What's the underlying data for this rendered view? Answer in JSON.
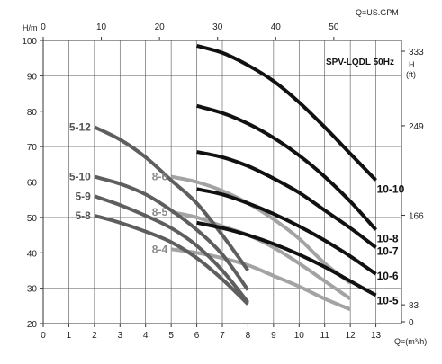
{
  "chart_data": {
    "type": "line",
    "title": "SPV-LQDL  50Hz",
    "xlabel": "Q=(m³/h)",
    "ylabel": "H/m",
    "top_xlabel": "Q=US.GPM",
    "right_ylabel": [
      "H",
      "(ft)"
    ],
    "xlim": [
      0,
      14
    ],
    "ylim": [
      20,
      100
    ],
    "top_xlim_gpm": [
      0,
      61.64
    ],
    "x_ticks": [
      0,
      1,
      2,
      3,
      4,
      5,
      6,
      7,
      8,
      9,
      10,
      11,
      12,
      13
    ],
    "y_ticks": [
      20,
      30,
      40,
      50,
      60,
      70,
      80,
      90,
      100
    ],
    "top_x_ticks": [
      0,
      10,
      20,
      30,
      40,
      50
    ],
    "right_y_ticks": [
      0,
      83,
      166,
      249,
      333
    ],
    "grid": true,
    "series": [
      {
        "name": "5-12",
        "color": "#5e5e5e",
        "label_side": "left",
        "x": [
          2,
          3,
          4,
          5,
          6,
          7,
          8
        ],
        "y": [
          75.5,
          72,
          67,
          60.5,
          54,
          45,
          35
        ]
      },
      {
        "name": "5-10",
        "color": "#5e5e5e",
        "label_side": "left",
        "x": [
          2,
          3,
          4,
          5,
          6,
          7,
          8
        ],
        "y": [
          61.5,
          59.5,
          56.5,
          52,
          46.5,
          39.5,
          29.5
        ]
      },
      {
        "name": "5-9",
        "color": "#5e5e5e",
        "label_side": "left",
        "x": [
          2,
          3,
          4,
          5,
          6,
          7,
          8
        ],
        "y": [
          56,
          53.5,
          50.5,
          47,
          42,
          35,
          26
        ]
      },
      {
        "name": "5-8",
        "color": "#5e5e5e",
        "label_side": "left",
        "x": [
          2,
          3,
          4,
          5,
          6,
          7,
          8
        ],
        "y": [
          50.5,
          48.5,
          46,
          43,
          38.5,
          32.5,
          25.5
        ]
      },
      {
        "name": "8-6",
        "color": "#a3a3a3",
        "label_side": "left",
        "x": [
          5,
          6,
          7,
          8,
          9,
          10,
          11,
          12
        ],
        "y": [
          61.5,
          60,
          57.5,
          54,
          49.5,
          44,
          37,
          31.5
        ]
      },
      {
        "name": "8-5",
        "color": "#a3a3a3",
        "label_side": "left",
        "x": [
          5,
          6,
          7,
          8,
          9,
          10,
          11,
          12
        ],
        "y": [
          51.5,
          50,
          47.5,
          45,
          41.5,
          37,
          32,
          27
        ]
      },
      {
        "name": "8-4",
        "color": "#a3a3a3",
        "label_side": "left",
        "x": [
          5,
          6,
          7,
          8,
          9,
          10,
          11,
          12
        ],
        "y": [
          41,
          40,
          38.5,
          36.5,
          33.5,
          30.5,
          27,
          24
        ]
      },
      {
        "name": "10-10",
        "color": "#111111",
        "label_side": "right",
        "x": [
          6,
          7,
          8,
          9,
          10,
          11,
          12,
          13
        ],
        "y": [
          98.5,
          96.5,
          93,
          88.5,
          82.5,
          75.5,
          68,
          60.5
        ]
      },
      {
        "name": "10-8",
        "color": "#111111",
        "label_side": "right",
        "x": [
          6,
          7,
          8,
          9,
          10,
          11,
          12,
          13
        ],
        "y": [
          81.5,
          79.5,
          76.5,
          72.5,
          67.5,
          61.5,
          54.5,
          46.5
        ]
      },
      {
        "name": "10-7",
        "color": "#111111",
        "label_side": "right",
        "x": [
          6,
          7,
          8,
          9,
          10,
          11,
          12,
          13
        ],
        "y": [
          68.5,
          67,
          64.5,
          61,
          57,
          52,
          47,
          41.5
        ]
      },
      {
        "name": "10-6",
        "color": "#111111",
        "label_side": "right",
        "x": [
          6,
          7,
          8,
          9,
          10,
          11,
          12,
          13
        ],
        "y": [
          58,
          56.5,
          54,
          51,
          47.5,
          43.5,
          39,
          34
        ]
      },
      {
        "name": "10-5",
        "color": "#111111",
        "label_side": "right",
        "x": [
          6,
          7,
          8,
          9,
          10,
          11,
          12,
          13
        ],
        "y": [
          48.5,
          47,
          45,
          42.5,
          39.5,
          36,
          32,
          28
        ]
      }
    ]
  }
}
